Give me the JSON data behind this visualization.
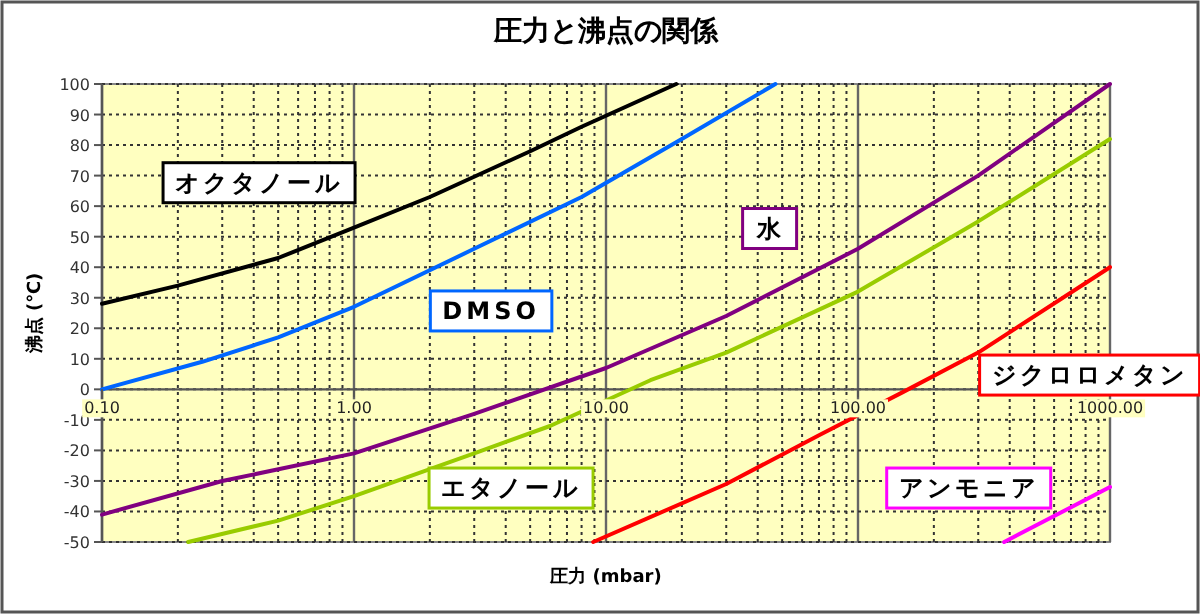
{
  "chart_data": {
    "type": "line",
    "title": "圧力と沸点の関係",
    "xlabel": "圧力 (mbar)",
    "ylabel": "沸点 (℃)",
    "log": "x",
    "grid": true,
    "marker": "none",
    "line_style": "solid",
    "xlim": [
      0.1,
      1000
    ],
    "ylim": [
      -50,
      100
    ],
    "xticks": [
      {
        "value": 0.1,
        "label": "0.10"
      },
      {
        "value": 1,
        "label": "1.00"
      },
      {
        "value": 10,
        "label": "10.00"
      },
      {
        "value": 100,
        "label": "100.00"
      },
      {
        "value": 1000,
        "label": "1000.00"
      }
    ],
    "yticks": [
      -50,
      -40,
      -30,
      -20,
      -10,
      0,
      10,
      20,
      30,
      40,
      50,
      60,
      70,
      80,
      90,
      100
    ],
    "series": [
      {
        "name": "オクタノール",
        "color": "#000000",
        "x": [
          0.1,
          0.2,
          0.5,
          1,
          2,
          5,
          8,
          19
        ],
        "values": [
          28,
          34,
          43,
          53,
          63,
          78,
          86,
          100
        ]
      },
      {
        "name": "DMSO",
        "color": "#0066ff",
        "x": [
          0.1,
          0.25,
          0.5,
          1,
          3,
          8,
          20,
          47
        ],
        "values": [
          0,
          9,
          17,
          27,
          46,
          63,
          82,
          100
        ]
      },
      {
        "name": "水",
        "color": "#800080",
        "x": [
          0.1,
          0.3,
          1,
          3,
          10,
          30,
          100,
          300,
          1000
        ],
        "values": [
          -41,
          -30,
          -21,
          -8,
          7,
          24,
          46,
          70,
          100
        ]
      },
      {
        "name": "エタノール",
        "color": "#99cc00",
        "x": [
          0.22,
          0.5,
          1,
          3,
          6,
          15,
          30,
          100,
          300,
          1000
        ],
        "values": [
          -50,
          -43,
          -35,
          -21,
          -12,
          3,
          12,
          32,
          55,
          82
        ]
      },
      {
        "name": "ジクロロメタン",
        "color": "#ff0000",
        "x": [
          8.9,
          30,
          70,
          150,
          300,
          1000
        ],
        "values": [
          -50,
          -31,
          -15,
          -1,
          12,
          40
        ]
      },
      {
        "name": "アンモニア",
        "color": "#ff00ff",
        "x": [
          380,
          1000
        ],
        "values": [
          -50,
          -32
        ]
      }
    ]
  }
}
